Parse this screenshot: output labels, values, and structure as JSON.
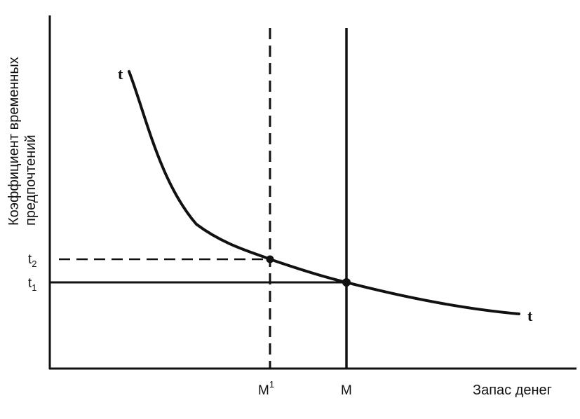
{
  "diagram": {
    "y_axis_label_line1": "Коэффициент временных",
    "y_axis_label_line2": "предпочтений",
    "x_axis_label": "Запас денег",
    "curve_label_start": "t",
    "curve_label_end": "t",
    "y_tick_t2": {
      "base": "t",
      "sub": "2"
    },
    "y_tick_t1": {
      "base": "t",
      "sub": "1"
    },
    "x_tick_m1": {
      "base": "M",
      "sup": "1"
    },
    "x_tick_m": "M"
  },
  "colors": {
    "ink": "#111111",
    "background": "#ffffff"
  }
}
